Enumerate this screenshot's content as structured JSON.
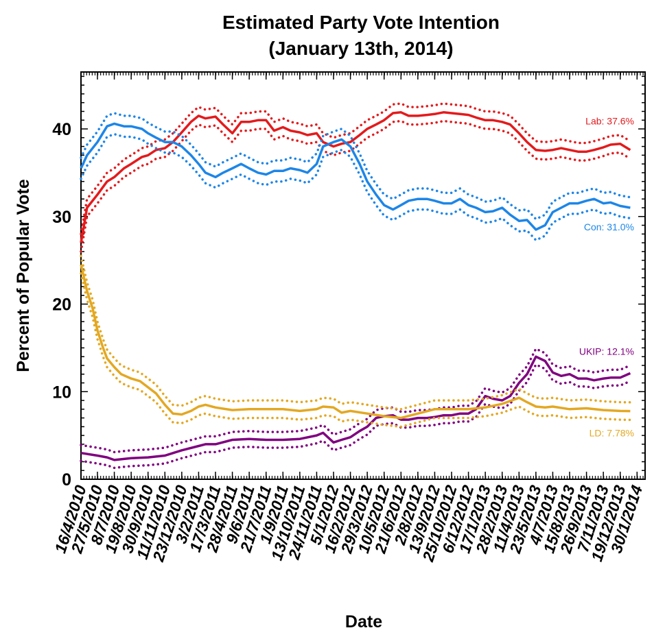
{
  "chart_data": {
    "type": "line",
    "title": "Estimated Party Vote Intention",
    "subtitle": "(January 13th, 2014)",
    "xlabel": "Date",
    "ylabel": "Percent of Popular Vote",
    "ylim": [
      0,
      46.5
    ],
    "yticks": [
      0,
      10,
      20,
      30,
      40
    ],
    "xlim": [
      "2010-04-16",
      "2014-02-19"
    ],
    "xticks": [
      "16/4/2010",
      "27/5/2010",
      "8/7/2010",
      "19/8/2010",
      "30/9/2010",
      "11/11/2010",
      "23/12/2010",
      "3/2/2011",
      "17/3/2011",
      "28/4/2011",
      "9/6/2011",
      "21/7/2011",
      "1/9/2011",
      "13/10/2011",
      "24/11/2011",
      "5/1/2012",
      "16/2/2012",
      "29/3/2012",
      "10/5/2012",
      "21/6/2012",
      "2/8/2012",
      "13/9/2012",
      "25/10/2012",
      "6/12/2012",
      "17/1/2013",
      "28/2/2013",
      "11/4/2013",
      "23/5/2013",
      "4/7/2013",
      "15/8/2013",
      "26/9/2013",
      "7/11/2013",
      "19/12/2013",
      "30/1/2014"
    ],
    "grid": false,
    "legend": "inline labels at right end of each line",
    "dotted_bands": "upper and lower dotted lines around each series",
    "series": [
      {
        "name": "Lab",
        "label": "Lab: 37.6%",
        "color": "#e41a1c",
        "band": 1.0,
        "x": [
          "2010-04-16",
          "2010-05-01",
          "2010-05-27",
          "2010-06-20",
          "2010-07-08",
          "2010-08-01",
          "2010-08-19",
          "2010-09-15",
          "2010-09-30",
          "2010-10-20",
          "2010-11-11",
          "2010-12-01",
          "2010-12-23",
          "2011-01-15",
          "2011-02-03",
          "2011-02-20",
          "2011-03-17",
          "2011-04-05",
          "2011-04-28",
          "2011-05-20",
          "2011-06-09",
          "2011-07-01",
          "2011-07-21",
          "2011-08-10",
          "2011-09-01",
          "2011-09-20",
          "2011-10-13",
          "2011-11-01",
          "2011-11-24",
          "2011-12-10",
          "2012-01-05",
          "2012-01-25",
          "2012-02-16",
          "2012-03-10",
          "2012-03-29",
          "2012-04-20",
          "2012-05-10",
          "2012-06-01",
          "2012-06-21",
          "2012-07-10",
          "2012-08-02",
          "2012-08-25",
          "2012-09-13",
          "2012-10-05",
          "2012-10-25",
          "2012-11-15",
          "2012-12-06",
          "2012-12-25",
          "2013-01-17",
          "2013-02-05",
          "2013-02-28",
          "2013-03-20",
          "2013-04-11",
          "2013-05-01",
          "2013-05-23",
          "2013-06-15",
          "2013-07-04",
          "2013-07-25",
          "2013-08-15",
          "2013-09-05",
          "2013-09-26",
          "2013-10-15",
          "2013-11-07",
          "2013-11-25",
          "2013-12-19",
          "2014-01-13"
        ],
        "y": [
          27.0,
          31.0,
          32.5,
          34.0,
          34.5,
          35.5,
          36.0,
          36.8,
          37.0,
          37.6,
          37.8,
          38.5,
          39.6,
          40.8,
          41.5,
          41.2,
          41.4,
          40.5,
          39.5,
          40.8,
          40.8,
          41.0,
          41.0,
          39.8,
          40.2,
          39.8,
          39.6,
          39.3,
          39.5,
          38.5,
          38.0,
          38.3,
          38.5,
          39.3,
          40.0,
          40.5,
          41.0,
          41.8,
          41.9,
          41.5,
          41.5,
          41.6,
          41.7,
          41.9,
          41.8,
          41.7,
          41.6,
          41.3,
          41.0,
          41.0,
          40.8,
          40.5,
          39.5,
          38.5,
          37.6,
          37.5,
          37.6,
          37.8,
          37.6,
          37.4,
          37.4,
          37.6,
          37.9,
          38.2,
          38.3,
          37.6
        ]
      },
      {
        "name": "Con",
        "label": "Con: 31.0%",
        "color": "#1c86e8",
        "band": 1.2,
        "x": [
          "2010-04-16",
          "2010-05-01",
          "2010-05-27",
          "2010-06-20",
          "2010-07-08",
          "2010-08-01",
          "2010-08-19",
          "2010-09-15",
          "2010-09-30",
          "2010-10-20",
          "2010-11-11",
          "2010-12-01",
          "2010-12-23",
          "2011-01-15",
          "2011-02-03",
          "2011-02-20",
          "2011-03-17",
          "2011-04-05",
          "2011-04-28",
          "2011-05-20",
          "2011-06-09",
          "2011-07-01",
          "2011-07-21",
          "2011-08-10",
          "2011-09-01",
          "2011-09-20",
          "2011-10-13",
          "2011-11-01",
          "2011-11-24",
          "2011-12-10",
          "2012-01-05",
          "2012-01-25",
          "2012-02-16",
          "2012-03-10",
          "2012-03-29",
          "2012-04-20",
          "2012-05-10",
          "2012-06-01",
          "2012-06-21",
          "2012-07-10",
          "2012-08-02",
          "2012-08-25",
          "2012-09-13",
          "2012-10-05",
          "2012-10-25",
          "2012-11-15",
          "2012-12-06",
          "2012-12-25",
          "2013-01-17",
          "2013-02-05",
          "2013-02-28",
          "2013-03-20",
          "2013-04-11",
          "2013-05-01",
          "2013-05-23",
          "2013-06-15",
          "2013-07-04",
          "2013-07-25",
          "2013-08-15",
          "2013-09-05",
          "2013-09-26",
          "2013-10-15",
          "2013-11-07",
          "2013-11-25",
          "2013-12-19",
          "2014-01-13"
        ],
        "y": [
          35.5,
          37.0,
          38.5,
          40.3,
          40.6,
          40.3,
          40.3,
          40.0,
          39.5,
          39.0,
          38.5,
          38.5,
          38.0,
          37.0,
          36.0,
          35.0,
          34.5,
          35.0,
          35.5,
          36.0,
          35.5,
          35.0,
          34.8,
          35.2,
          35.2,
          35.5,
          35.3,
          35.0,
          36.0,
          38.0,
          38.5,
          38.8,
          38.0,
          36.0,
          34.0,
          32.5,
          31.3,
          30.8,
          31.3,
          31.8,
          32.0,
          32.0,
          31.8,
          31.5,
          31.5,
          32.0,
          31.3,
          31.0,
          30.5,
          30.6,
          31.0,
          30.2,
          29.5,
          29.6,
          28.5,
          29.0,
          30.5,
          31.0,
          31.5,
          31.5,
          31.8,
          32.0,
          31.5,
          31.6,
          31.2,
          31.0
        ]
      },
      {
        "name": "UKIP",
        "label": "UKIP: 12.1%",
        "color": "#800080",
        "band": 0.9,
        "x": [
          "2010-04-16",
          "2010-05-27",
          "2010-06-20",
          "2010-07-08",
          "2010-08-19",
          "2010-09-30",
          "2010-11-11",
          "2010-12-23",
          "2011-02-03",
          "2011-02-20",
          "2011-03-17",
          "2011-04-28",
          "2011-06-09",
          "2011-07-21",
          "2011-09-01",
          "2011-10-13",
          "2011-11-24",
          "2011-12-10",
          "2012-01-05",
          "2012-01-25",
          "2012-02-16",
          "2012-03-10",
          "2012-03-29",
          "2012-04-20",
          "2012-05-10",
          "2012-06-01",
          "2012-06-21",
          "2012-07-10",
          "2012-08-02",
          "2012-08-25",
          "2012-09-13",
          "2012-10-05",
          "2012-10-25",
          "2012-11-15",
          "2012-12-06",
          "2012-12-25",
          "2013-01-17",
          "2013-02-05",
          "2013-02-28",
          "2013-03-20",
          "2013-04-11",
          "2013-05-01",
          "2013-05-23",
          "2013-06-15",
          "2013-07-04",
          "2013-07-25",
          "2013-08-15",
          "2013-09-05",
          "2013-09-26",
          "2013-10-15",
          "2013-11-07",
          "2013-11-25",
          "2013-12-19",
          "2014-01-13"
        ],
        "y": [
          3.0,
          2.7,
          2.5,
          2.2,
          2.4,
          2.5,
          2.7,
          3.3,
          3.8,
          4.0,
          4.0,
          4.5,
          4.6,
          4.5,
          4.5,
          4.6,
          5.0,
          5.3,
          4.2,
          4.5,
          4.8,
          5.5,
          6.0,
          7.0,
          7.2,
          7.3,
          6.8,
          6.8,
          7.0,
          7.0,
          7.1,
          7.3,
          7.3,
          7.5,
          7.5,
          8.0,
          9.5,
          9.2,
          9.0,
          9.5,
          11.0,
          12.0,
          14.0,
          13.5,
          12.2,
          11.8,
          12.0,
          11.5,
          11.5,
          11.3,
          11.5,
          11.6,
          11.6,
          12.1
        ]
      },
      {
        "name": "LD",
        "label": "LD: 7.78%",
        "color": "#e3a822",
        "band": 1.0,
        "x": [
          "2010-04-16",
          "2010-05-01",
          "2010-05-15",
          "2010-05-27",
          "2010-06-10",
          "2010-06-20",
          "2010-07-08",
          "2010-07-25",
          "2010-08-19",
          "2010-09-10",
          "2010-09-30",
          "2010-10-20",
          "2010-11-11",
          "2010-12-01",
          "2010-12-23",
          "2011-01-15",
          "2011-02-03",
          "2011-02-20",
          "2011-03-17",
          "2011-04-28",
          "2011-06-09",
          "2011-07-21",
          "2011-09-01",
          "2011-10-13",
          "2011-11-24",
          "2011-12-10",
          "2012-01-05",
          "2012-01-25",
          "2012-02-16",
          "2012-03-29",
          "2012-05-10",
          "2012-06-21",
          "2012-08-02",
          "2012-09-13",
          "2012-10-25",
          "2012-12-06",
          "2013-01-17",
          "2013-02-28",
          "2013-04-11",
          "2013-05-01",
          "2013-05-23",
          "2013-06-15",
          "2013-07-04",
          "2013-08-15",
          "2013-09-26",
          "2013-11-07",
          "2013-12-19",
          "2014-01-13"
        ],
        "y": [
          24.5,
          21.5,
          19.5,
          17.0,
          15.0,
          13.8,
          12.8,
          12.0,
          11.5,
          11.2,
          10.5,
          9.8,
          8.5,
          7.5,
          7.4,
          7.8,
          8.3,
          8.5,
          8.2,
          7.9,
          8.0,
          8.0,
          8.0,
          7.8,
          8.0,
          8.3,
          8.2,
          7.6,
          7.8,
          7.5,
          7.2,
          7.0,
          7.5,
          8.0,
          8.0,
          8.0,
          8.2,
          8.6,
          9.3,
          8.8,
          8.3,
          8.2,
          8.3,
          8.0,
          8.1,
          7.9,
          7.8,
          7.78
        ]
      }
    ]
  }
}
